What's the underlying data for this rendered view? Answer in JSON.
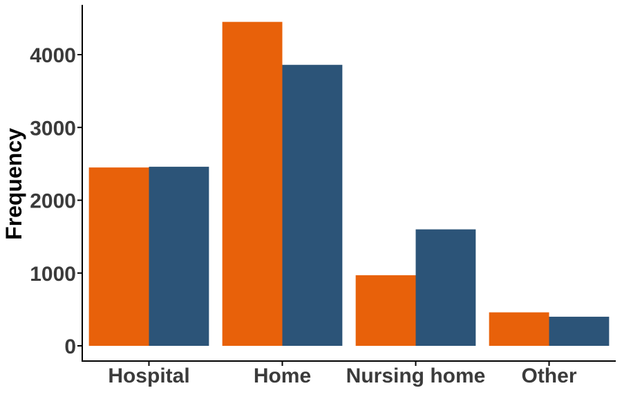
{
  "chart_data": {
    "type": "bar",
    "categories": [
      "Hospital",
      "Home",
      "Nursing home",
      "Other"
    ],
    "series": [
      {
        "values": [
          2450,
          4450,
          970,
          460
        ],
        "color": "#e8610a"
      },
      {
        "values": [
          2460,
          3860,
          1600,
          400
        ],
        "color": "#2c5478"
      }
    ],
    "xlabel": "",
    "ylabel": "Frequency",
    "ylim": [
      0,
      4650
    ],
    "yticks": [
      0,
      1000,
      2000,
      3000,
      4000
    ],
    "ytick_labels": [
      "0",
      "1000",
      "2000",
      "3000",
      "4000"
    ],
    "grid": false,
    "legend": "none"
  }
}
